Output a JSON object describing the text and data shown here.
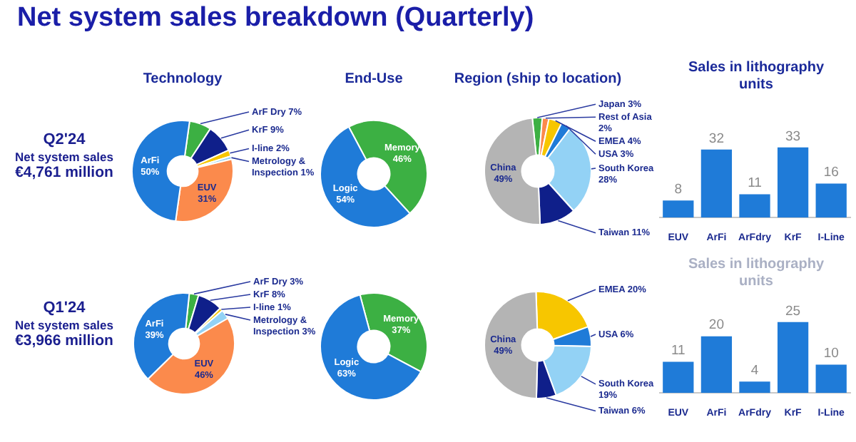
{
  "chart_data": [
    {
      "type": "other",
      "title": "Net system sales breakdown (Quarterly)"
    },
    {
      "type": "other",
      "title": "Q2'24",
      "annotations": [
        "Net system sales",
        "€4,761 million"
      ]
    },
    {
      "type": "donut",
      "title": "Technology",
      "categories": [
        "ArF Dry",
        "KrF",
        "I-line",
        "Metrology & Inspection",
        "EUV",
        "ArFi"
      ],
      "values": [
        7,
        9,
        2,
        1,
        31,
        50
      ],
      "colors": [
        "#3cb043",
        "#0f1f8a",
        "#f7c600",
        "#93d2f5",
        "#fb8a4c",
        "#1f7bd8"
      ],
      "value_labels": [
        "7%",
        "9%",
        "2%",
        "1%",
        "31%",
        "50%"
      ]
    },
    {
      "type": "donut",
      "title": "End-Use",
      "categories": [
        "Memory",
        "Logic"
      ],
      "values": [
        46,
        54
      ],
      "colors": [
        "#3cb043",
        "#1f7bd8"
      ],
      "value_labels": [
        "46%",
        "54%"
      ]
    },
    {
      "type": "donut",
      "title": "Region (ship to location)",
      "categories": [
        "Japan",
        "Rest of Asia",
        "EMEA",
        "USA",
        "South Korea",
        "Taiwan",
        "China"
      ],
      "values": [
        3,
        2,
        4,
        3,
        28,
        11,
        49
      ],
      "colors": [
        "#3cb043",
        "#fb8a4c",
        "#f7c600",
        "#1f7bd8",
        "#93d2f5",
        "#0f1f8a",
        "#b4b4b4"
      ],
      "value_labels": [
        "3%",
        "2%",
        "4%",
        "3%",
        "28%",
        "11%",
        "49%"
      ]
    },
    {
      "type": "bar",
      "title": "Sales in lithography units",
      "categories": [
        "EUV",
        "ArFi",
        "ArFdry",
        "KrF",
        "I-Line"
      ],
      "values": [
        8,
        32,
        11,
        33,
        16
      ],
      "color": "#1f7bd8",
      "data_labels": true
    },
    {
      "type": "other",
      "title": "Q1'24",
      "annotations": [
        "Net system sales",
        "€3,966 million"
      ]
    },
    {
      "type": "donut",
      "categories": [
        "ArF Dry",
        "KrF",
        "I-line",
        "Metrology & Inspection",
        "EUV",
        "ArFi"
      ],
      "values": [
        3,
        8,
        1,
        3,
        46,
        39
      ],
      "colors": [
        "#3cb043",
        "#0f1f8a",
        "#f7c600",
        "#93d2f5",
        "#fb8a4c",
        "#1f7bd8"
      ],
      "value_labels": [
        "3%",
        "8%",
        "1%",
        "3%",
        "46%",
        "39%"
      ]
    },
    {
      "type": "donut",
      "categories": [
        "Memory",
        "Logic"
      ],
      "values": [
        37,
        63
      ],
      "colors": [
        "#3cb043",
        "#1f7bd8"
      ],
      "value_labels": [
        "37%",
        "63%"
      ]
    },
    {
      "type": "donut",
      "categories": [
        "EMEA",
        "USA",
        "South Korea",
        "Taiwan",
        "China"
      ],
      "values": [
        20,
        6,
        19,
        6,
        49
      ],
      "colors": [
        "#f7c600",
        "#1f7bd8",
        "#93d2f5",
        "#0f1f8a",
        "#b4b4b4"
      ],
      "value_labels": [
        "20%",
        "6%",
        "19%",
        "6%",
        "49%"
      ]
    },
    {
      "type": "bar",
      "title": "Sales in lithography units",
      "categories": [
        "EUV",
        "ArFi",
        "ArFdry",
        "KrF",
        "I-Line"
      ],
      "values": [
        11,
        20,
        4,
        25,
        10
      ],
      "color": "#1f7bd8",
      "data_labels": true
    }
  ]
}
